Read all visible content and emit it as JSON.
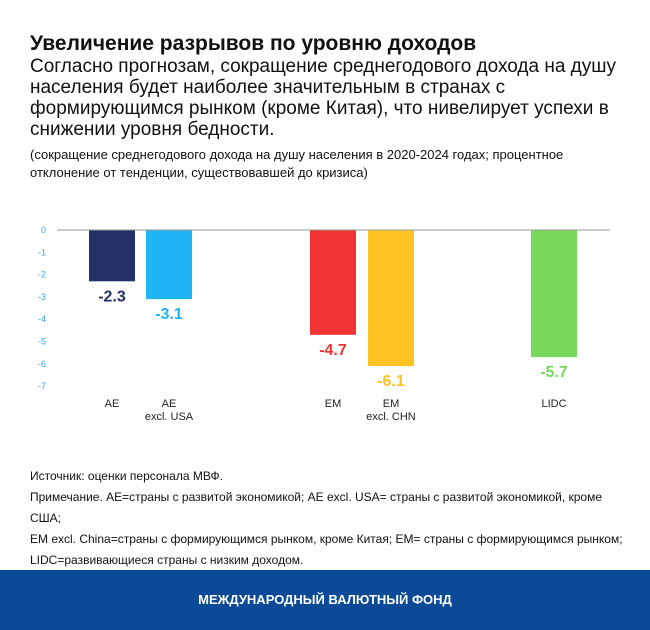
{
  "header": {
    "title": "Увеличение разрывов по уровню доходов",
    "subtitle": "Согласно прогнозам, сокращение среднегодового дохода на душу населения будет наиболее значительным в странах с формирующимся рынком (кроме Китая), что нивелирует успехи в снижении уровня бедности.",
    "note": "(сокращение среднегодового дохода на душу населения в 2020-2024 годах; процентное отклонение от тенденции, существовавшей до кризиса)"
  },
  "chart_data": {
    "type": "bar",
    "title": "",
    "xlabel": "",
    "ylabel": "",
    "ylim": [
      -7,
      0
    ],
    "yticks": [
      "0",
      "-1",
      "-2",
      "-3",
      "-4",
      "-5",
      "-6",
      "-7"
    ],
    "grid": false,
    "categories": [
      {
        "line1": "AE",
        "line2": ""
      },
      {
        "line1": "AE",
        "line2": "excl. USA"
      },
      {
        "line1": "EM",
        "line2": ""
      },
      {
        "line1": "EM",
        "line2": "excl. CHN"
      },
      {
        "line1": "LIDC",
        "line2": ""
      }
    ],
    "values": [
      -2.3,
      -3.1,
      -4.7,
      -6.1,
      -5.7
    ],
    "labels": [
      "-2.3",
      "-3.1",
      "-4.7",
      "-6.1",
      "-5.7"
    ],
    "colors": [
      "#253069",
      "#1fb5f5",
      "#f33333",
      "#fec321",
      "#78d85a"
    ],
    "tick_color": "#3aa5dc"
  },
  "footer": {
    "source": "Источник: оценки персонала МВФ.",
    "note1": "Примечание. AE=страны с развитой экономикой; AE excl. USA= страны с развитой экономикой, кроме США;",
    "note2": "EM excl. China=страны с формирующимся рынком, кроме Китая; EM= страны с формирующимся рынком;",
    "note3": "LIDC=развивающиеся страны с низким доходом.",
    "brand": "МЕЖДУНАРОДНЫЙ ВАЛЮТНЫЙ ФОНД"
  }
}
